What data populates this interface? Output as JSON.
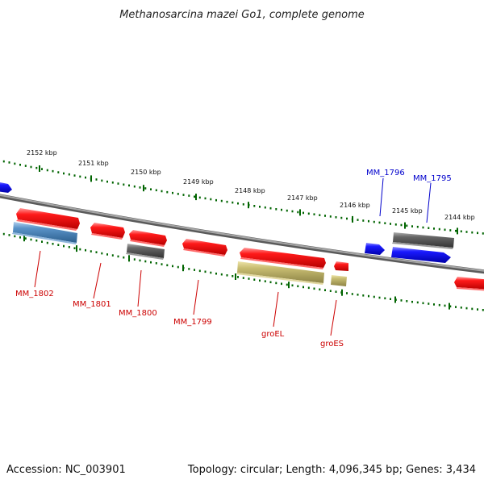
{
  "title": "Methanosarcina mazei Go1, complete genome",
  "footer": {
    "accession": "Accession: NC_003901",
    "summary": "Topology: circular; Length: 4,096,345 bp; Genes: 3,434"
  },
  "colors": {
    "forward_gene": "#ff0000",
    "reverse_gene": "#0000ff",
    "gray_gene": "#555555",
    "khaki_gene": "#bdb76b",
    "steel_gene": "#4682b4",
    "tick_green": "#006400",
    "backbone": "#808080",
    "red_label": "#cc0000",
    "blue_label": "#0000cc"
  },
  "scale": {
    "labels": [
      "2152 kbp",
      "2151 kbp",
      "2150 kbp",
      "2149 kbp",
      "2148 kbp",
      "2147 kbp",
      "2146 kbp",
      "2145 kbp",
      "2144 kbp"
    ]
  },
  "genes": [
    {
      "label": "MM_1802",
      "color_key": "red",
      "strand": "forward"
    },
    {
      "label": "MM_1801",
      "color_key": "red",
      "strand": "forward"
    },
    {
      "label": "MM_1800",
      "color_key": "red",
      "strand": "forward"
    },
    {
      "label": "MM_1799",
      "color_key": "red",
      "strand": "forward"
    },
    {
      "label": "groEL",
      "color_key": "red",
      "strand": "forward"
    },
    {
      "label": "groES",
      "color_key": "red",
      "strand": "forward"
    },
    {
      "label": "MM_1796",
      "color_key": "blue",
      "strand": "reverse"
    },
    {
      "label": "MM_1795",
      "color_key": "blue",
      "strand": "reverse"
    }
  ]
}
